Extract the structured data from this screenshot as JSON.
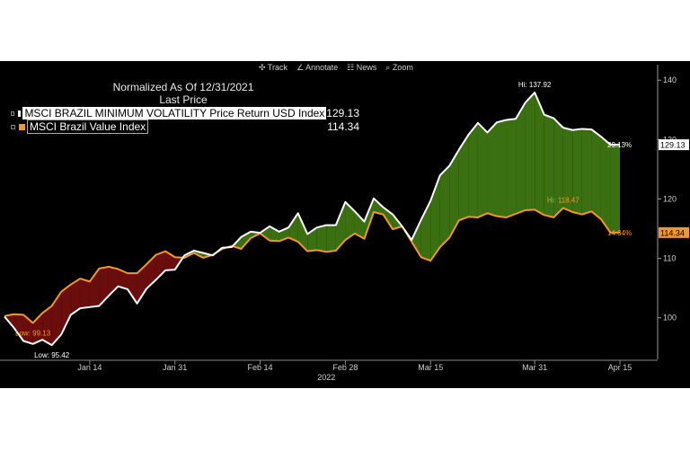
{
  "toolbar": {
    "track": "Track",
    "annotate": "Annotate",
    "news": "News",
    "zoom": "Zoom"
  },
  "legend": {
    "line1": "Normalized As Of 12/31/2021",
    "line2": "Last Price"
  },
  "chart_data": {
    "type": "area",
    "x_tick_labels": [
      "Jan 14",
      "Jan 31",
      "Feb 14",
      "Feb 28",
      "Mar 15",
      "Mar 31",
      "Apr 15"
    ],
    "x_year_label": "2022",
    "y_ticks": [
      100,
      110,
      120,
      130,
      140
    ],
    "ylim": [
      93,
      142
    ],
    "series": [
      {
        "name": "MSCI BRAZIL MINIMUM VOLATILITY Price Return USD Index",
        "last_value": "129.13",
        "end_label": "29.13%",
        "color": "#ffffff",
        "values": [
          100.2,
          98.3,
          96.1,
          95.6,
          96.3,
          95.4,
          97.2,
          100.5,
          101.6,
          101.8,
          102.0,
          103.7,
          105.3,
          104.8,
          102.4,
          104.9,
          106.4,
          108.0,
          108.1,
          110.5,
          111.3,
          110.9,
          110.5,
          111.8,
          111.9,
          113.6,
          114.5,
          114.3,
          115.4,
          114.5,
          115.2,
          117.6,
          114.1,
          115.2,
          115.6,
          115.6,
          119.5,
          117.9,
          116.2,
          120.1,
          118.6,
          117.4,
          115.4,
          113.1,
          116.5,
          119.7,
          124.0,
          125.6,
          128.3,
          130.8,
          132.8,
          131.2,
          132.9,
          133.3,
          133.5,
          136.2,
          137.92,
          134.2,
          133.6,
          132.0,
          131.6,
          131.8,
          131.7,
          130.5,
          129.13,
          129.13
        ]
      },
      {
        "name": "MSCI Brazil Value Index",
        "last_value": "114.34",
        "end_label": "14.34%",
        "color": "#f5962a",
        "values": [
          100.3,
          100.6,
          100.5,
          99.13,
          100.8,
          102.0,
          104.4,
          105.6,
          106.6,
          106.1,
          108.3,
          108.6,
          108.2,
          107.5,
          107.5,
          109.0,
          110.6,
          111.2,
          110.2,
          110.1,
          110.9,
          110.1,
          110.6,
          111.6,
          112.1,
          111.6,
          113.4,
          114.2,
          113.0,
          112.9,
          113.5,
          112.8,
          111.2,
          111.4,
          111.1,
          111.3,
          113.1,
          114.2,
          113.3,
          117.8,
          117.4,
          114.9,
          115.4,
          112.8,
          110.2,
          109.6,
          111.9,
          113.5,
          116.4,
          117.0,
          116.9,
          117.6,
          117.1,
          116.9,
          117.5,
          118.1,
          118.2,
          117.3,
          116.9,
          118.47,
          117.8,
          117.4,
          117.9,
          116.6,
          114.34,
          114.34
        ]
      }
    ],
    "annotations": [
      {
        "text": "Hi: 137.92",
        "series": 0,
        "index": 56
      },
      {
        "text": "Low: 95.42",
        "series": 0,
        "index": 5
      },
      {
        "text": "Hi: 118.47",
        "series": 1,
        "index": 59
      },
      {
        "text": "Low: 99.13",
        "series": 1,
        "index": 3
      }
    ],
    "fill_colors": {
      "above": "#3a7012",
      "below": "#6b0d0d"
    },
    "grid": false,
    "legend_position": "top-left"
  }
}
